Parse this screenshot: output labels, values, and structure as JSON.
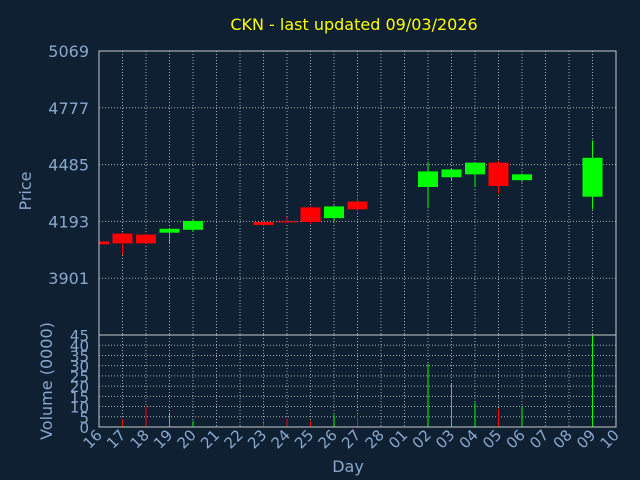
{
  "chart_data": {
    "type": "candlestick",
    "title": "CKN - last updated 09/03/2026",
    "xlabel": "Day",
    "ylabel": "Price",
    "volume_label": "Volume (0000)",
    "colors": {
      "up": "#00ff00",
      "down": "#ff0000",
      "background": "#0f2033",
      "text": "#8aa8cc",
      "title": "#ffff00",
      "grid": "#c8c8c8"
    },
    "grid": true,
    "price_ticks": [
      "5069",
      "4777",
      "4485",
      "4193",
      "3901"
    ],
    "price_range": [
      3609,
      5069
    ],
    "volume_ticks": [
      "45",
      "40",
      "35",
      "30",
      "25",
      "20",
      "15",
      "10",
      "5",
      "0"
    ],
    "volume_range": [
      0,
      45
    ],
    "x_ticks": [
      "16",
      "17",
      "18",
      "19",
      "20",
      "21",
      "22",
      "23",
      "24",
      "25",
      "26",
      "27",
      "28",
      "01",
      "02",
      "03",
      "04",
      "05",
      "06",
      "07",
      "08",
      "09",
      "10"
    ],
    "candles": [
      {
        "day": "16",
        "open": 4090,
        "high": 4100,
        "low": 4070,
        "close": 4075,
        "volume": 1
      },
      {
        "day": "17",
        "open": 4130,
        "high": 4135,
        "low": 4020,
        "close": 4080,
        "volume": 4
      },
      {
        "day": "18",
        "open": 4125,
        "high": 4130,
        "low": 4075,
        "close": 4080,
        "volume": 10
      },
      {
        "day": "19",
        "open": 4135,
        "high": 4160,
        "low": 4080,
        "close": 4155,
        "volume": 7
      },
      {
        "day": "20",
        "open": 4150,
        "high": 4200,
        "low": 4140,
        "close": 4195,
        "volume": 3
      },
      {
        "day": "23",
        "open": 4190,
        "high": 4200,
        "low": 4170,
        "close": 4175,
        "volume": 2
      },
      {
        "day": "24",
        "open": 4193,
        "high": 4215,
        "low": 4185,
        "close": 4188,
        "volume": 4
      },
      {
        "day": "25",
        "open": 4265,
        "high": 4270,
        "low": 4180,
        "close": 4190,
        "volume": 3
      },
      {
        "day": "26",
        "open": 4210,
        "high": 4275,
        "low": 4195,
        "close": 4270,
        "volume": 6
      },
      {
        "day": "27",
        "open": 4295,
        "high": 4320,
        "low": 4245,
        "close": 4255,
        "volume": 6
      },
      {
        "day": "02",
        "open": 4370,
        "high": 4500,
        "low": 4260,
        "close": 4450,
        "volume": 31
      },
      {
        "day": "03",
        "open": 4420,
        "high": 4465,
        "low": 4405,
        "close": 4460,
        "volume": 21
      },
      {
        "day": "04",
        "open": 4435,
        "high": 4495,
        "low": 4370,
        "close": 4495,
        "volume": 12
      },
      {
        "day": "05",
        "open": 4495,
        "high": 4505,
        "low": 4335,
        "close": 4375,
        "volume": 9
      },
      {
        "day": "06",
        "open": 4405,
        "high": 4440,
        "low": 4395,
        "close": 4435,
        "volume": 10
      },
      {
        "day": "09",
        "open": 4320,
        "high": 4610,
        "low": 4255,
        "close": 4520,
        "volume": 45
      }
    ]
  }
}
